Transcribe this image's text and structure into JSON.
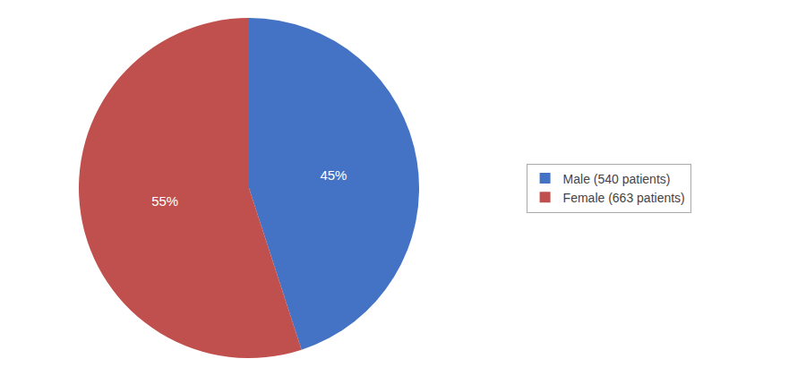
{
  "chart_data": {
    "type": "pie",
    "categories": [
      "Male (540 patients)",
      "Female (663 patients)"
    ],
    "values": [
      45,
      55
    ],
    "value_labels": [
      "45%",
      "55%"
    ],
    "colors": [
      "#4472C4",
      "#C0504D"
    ],
    "data_labels": true,
    "legend": "right"
  }
}
